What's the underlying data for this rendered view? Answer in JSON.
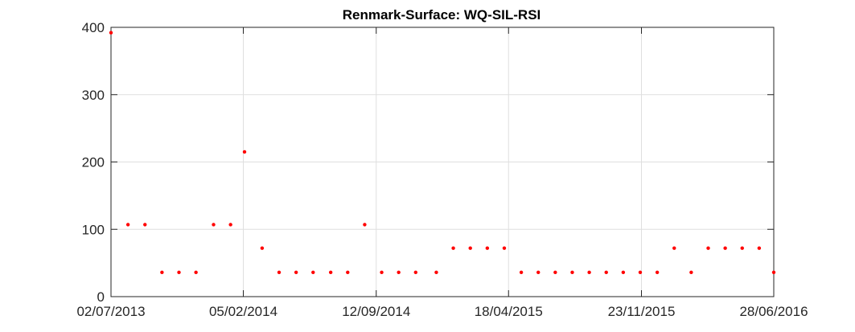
{
  "chart_data": {
    "type": "scatter",
    "title": "Renmark-Surface: WQ-SIL-RSI",
    "xlabel": "",
    "ylabel": "",
    "x_type": "date",
    "xlim": [
      "2013-07-02",
      "2016-06-28"
    ],
    "ylim": [
      0,
      400
    ],
    "x_ticks": [
      "2013-07-02",
      "2014-02-05",
      "2014-09-12",
      "2015-04-18",
      "2015-11-23",
      "2016-06-28"
    ],
    "x_tick_labels": [
      "02/07/2013",
      "05/02/2014",
      "12/09/2014",
      "18/04/2015",
      "23/11/2015",
      "28/06/2016"
    ],
    "y_ticks": [
      0,
      100,
      200,
      300,
      400
    ],
    "y_tick_labels": [
      "0",
      "100",
      "200",
      "300",
      "400"
    ],
    "grid": true,
    "marker_color": "#ff0000",
    "series": [
      {
        "points": [
          {
            "x": "2013-07-02",
            "y": 392
          },
          {
            "x": "2013-07-30",
            "y": 107
          },
          {
            "x": "2013-08-27",
            "y": 107
          },
          {
            "x": "2013-09-24",
            "y": 36
          },
          {
            "x": "2013-10-22",
            "y": 36
          },
          {
            "x": "2013-11-19",
            "y": 36
          },
          {
            "x": "2013-12-18",
            "y": 107
          },
          {
            "x": "2014-01-15",
            "y": 107
          },
          {
            "x": "2014-02-07",
            "y": 215
          },
          {
            "x": "2014-03-08",
            "y": 72
          },
          {
            "x": "2014-04-05",
            "y": 36
          },
          {
            "x": "2014-05-03",
            "y": 36
          },
          {
            "x": "2014-05-31",
            "y": 36
          },
          {
            "x": "2014-06-29",
            "y": 36
          },
          {
            "x": "2014-07-27",
            "y": 36
          },
          {
            "x": "2014-08-24",
            "y": 107
          },
          {
            "x": "2014-09-21",
            "y": 36
          },
          {
            "x": "2014-10-19",
            "y": 36
          },
          {
            "x": "2014-11-16",
            "y": 36
          },
          {
            "x": "2014-12-20",
            "y": 36
          },
          {
            "x": "2015-01-17",
            "y": 72
          },
          {
            "x": "2015-02-14",
            "y": 72
          },
          {
            "x": "2015-03-14",
            "y": 72
          },
          {
            "x": "2015-04-11",
            "y": 72
          },
          {
            "x": "2015-05-09",
            "y": 36
          },
          {
            "x": "2015-06-06",
            "y": 36
          },
          {
            "x": "2015-07-04",
            "y": 36
          },
          {
            "x": "2015-08-01",
            "y": 36
          },
          {
            "x": "2015-08-29",
            "y": 36
          },
          {
            "x": "2015-09-26",
            "y": 36
          },
          {
            "x": "2015-10-24",
            "y": 36
          },
          {
            "x": "2015-11-21",
            "y": 36
          },
          {
            "x": "2015-12-19",
            "y": 36
          },
          {
            "x": "2016-01-16",
            "y": 72
          },
          {
            "x": "2016-02-13",
            "y": 36
          },
          {
            "x": "2016-03-12",
            "y": 72
          },
          {
            "x": "2016-04-09",
            "y": 72
          },
          {
            "x": "2016-05-07",
            "y": 72
          },
          {
            "x": "2016-06-04",
            "y": 72
          },
          {
            "x": "2016-06-28",
            "y": 36
          }
        ]
      }
    ]
  }
}
